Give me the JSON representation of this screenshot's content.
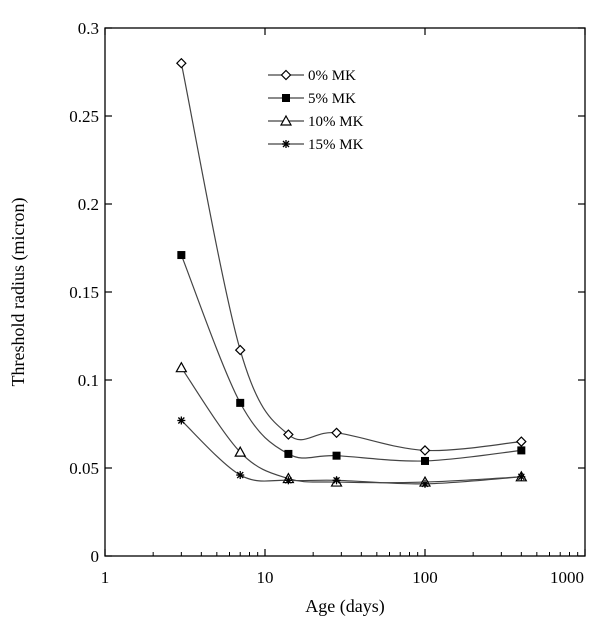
{
  "chart_data": {
    "type": "line",
    "title": "",
    "xlabel": "Age (days)",
    "ylabel": "Threshold radius (micron)",
    "xscale": "log",
    "xlim": [
      1,
      1000
    ],
    "ylim": [
      0,
      0.3
    ],
    "x_ticks": [
      "1",
      "10",
      "100",
      "1000"
    ],
    "y_ticks": [
      "0",
      "0.05",
      "0.1",
      "0.15",
      "0.2",
      "0.25",
      "0.3"
    ],
    "grid": false,
    "legend_position": "top-center",
    "x": [
      3,
      7,
      14,
      28,
      100,
      400
    ],
    "series": [
      {
        "name": "0% MK",
        "marker": "open-diamond",
        "values": [
          0.28,
          0.117,
          0.069,
          0.07,
          0.06,
          0.065
        ]
      },
      {
        "name": "5% MK",
        "marker": "filled-square",
        "values": [
          0.171,
          0.087,
          0.058,
          0.057,
          0.054,
          0.06
        ]
      },
      {
        "name": "10% MK",
        "marker": "open-triangle",
        "values": [
          0.107,
          0.059,
          0.044,
          0.042,
          0.042,
          0.045
        ]
      },
      {
        "name": "15% MK",
        "marker": "asterisk",
        "values": [
          0.077,
          0.046,
          0.043,
          0.043,
          0.041,
          0.045
        ]
      }
    ]
  }
}
